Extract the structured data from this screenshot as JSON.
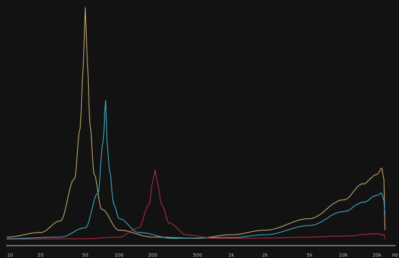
{
  "chart_data": {
    "type": "line",
    "title": "",
    "xlabel": "",
    "ylabel": "",
    "x_scale": "log",
    "xlim": [
      10,
      25000
    ],
    "ylim": [
      0,
      100
    ],
    "grid": false,
    "legend": "none",
    "x_unit_label": "Hz",
    "x_ticks": [
      {
        "value": 10,
        "label": "10"
      },
      {
        "value": 20,
        "label": "20"
      },
      {
        "value": 50,
        "label": "50"
      },
      {
        "value": 100,
        "label": "100"
      },
      {
        "value": 200,
        "label": "200"
      },
      {
        "value": 500,
        "label": "500"
      },
      {
        "value": 1000,
        "label": "1k"
      },
      {
        "value": 2000,
        "label": "2k"
      },
      {
        "value": 5000,
        "label": "5k"
      },
      {
        "value": 10000,
        "label": "10k"
      },
      {
        "value": 20000,
        "label": "20k"
      }
    ],
    "series": [
      {
        "color": "#c8ac70",
        "points": [
          [
            10,
            1
          ],
          [
            20,
            3
          ],
          [
            30,
            8
          ],
          [
            40,
            26
          ],
          [
            45,
            48
          ],
          [
            48,
            75
          ],
          [
            50,
            100
          ],
          [
            52,
            78
          ],
          [
            55,
            50
          ],
          [
            60,
            28
          ],
          [
            70,
            13
          ],
          [
            100,
            4
          ],
          [
            200,
            1
          ],
          [
            500,
            0.5
          ],
          [
            1000,
            2
          ],
          [
            2000,
            4
          ],
          [
            5000,
            9
          ],
          [
            10000,
            17
          ],
          [
            15000,
            24
          ],
          [
            20000,
            28
          ],
          [
            22000,
            31
          ],
          [
            23000,
            26
          ],
          [
            23500,
            4
          ]
        ]
      },
      {
        "color": "#3fb2c9",
        "points": [
          [
            10,
            0.3
          ],
          [
            30,
            1
          ],
          [
            50,
            5
          ],
          [
            65,
            20
          ],
          [
            72,
            42
          ],
          [
            76,
            60
          ],
          [
            78,
            43
          ],
          [
            82,
            30
          ],
          [
            90,
            15
          ],
          [
            100,
            9
          ],
          [
            150,
            3
          ],
          [
            300,
            0.5
          ],
          [
            1000,
            0.8
          ],
          [
            2000,
            2
          ],
          [
            5000,
            6
          ],
          [
            10000,
            12
          ],
          [
            15000,
            16
          ],
          [
            20000,
            19
          ],
          [
            22000,
            20
          ],
          [
            23000,
            17
          ],
          [
            23500,
            11
          ]
        ]
      },
      {
        "color": "#b82a45",
        "points": [
          [
            10,
            0.1
          ],
          [
            50,
            0.3
          ],
          [
            100,
            1
          ],
          [
            150,
            5
          ],
          [
            185,
            15
          ],
          [
            200,
            25
          ],
          [
            210,
            30
          ],
          [
            220,
            24
          ],
          [
            240,
            15
          ],
          [
            280,
            7
          ],
          [
            400,
            2
          ],
          [
            700,
            0.5
          ],
          [
            1000,
            0.5
          ],
          [
            2000,
            0.6
          ],
          [
            5000,
            1
          ],
          [
            10000,
            1.5
          ],
          [
            20000,
            2.5
          ],
          [
            23000,
            2
          ],
          [
            23500,
            0.3
          ]
        ]
      }
    ]
  }
}
